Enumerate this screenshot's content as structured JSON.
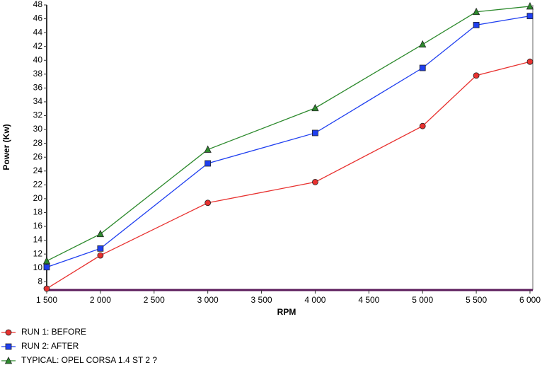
{
  "chart_data": {
    "type": "line",
    "x_label": "RPM",
    "y_label": "Power (Kw)",
    "x": [
      1500,
      2000,
      3000,
      4000,
      5000,
      5500,
      6000
    ],
    "series": [
      {
        "name": "RUN 1: BEFORE",
        "color": "#e8312f",
        "marker": "circle",
        "values": [
          7.0,
          11.8,
          19.4,
          22.4,
          30.5,
          37.8,
          39.8
        ]
      },
      {
        "name": "RUN 2: AFTER",
        "color": "#1f3ff0",
        "marker": "square",
        "values": [
          10.1,
          12.8,
          25.1,
          29.5,
          38.9,
          45.1,
          46.4
        ]
      },
      {
        "name": "TYPICAL: OPEL CORSA 1.4 ST 2 ?",
        "color": "#2d8a2d",
        "marker": "triangle",
        "values": [
          11.0,
          14.9,
          27.1,
          33.1,
          42.3,
          47.0,
          47.8
        ]
      }
    ],
    "xlim": [
      1500,
      6000
    ],
    "xticks": [
      {
        "value": 1500,
        "label": "1 500"
      },
      {
        "value": 2000,
        "label": "2 000"
      },
      {
        "value": 2500,
        "label": "2 500"
      },
      {
        "value": 3000,
        "label": "3 000"
      },
      {
        "value": 3500,
        "label": "3 500"
      },
      {
        "value": 4000,
        "label": "4 000"
      },
      {
        "value": 4500,
        "label": "4 500"
      },
      {
        "value": 5000,
        "label": "5 000"
      },
      {
        "value": 5500,
        "label": "5 500"
      },
      {
        "value": 6000,
        "label": "6 000"
      }
    ],
    "ylim": [
      6.8,
      48
    ],
    "yticks": [
      8,
      10,
      12,
      14,
      16,
      18,
      20,
      22,
      24,
      26,
      28,
      30,
      32,
      34,
      36,
      38,
      40,
      42,
      44,
      46,
      48
    ],
    "grid": false
  }
}
